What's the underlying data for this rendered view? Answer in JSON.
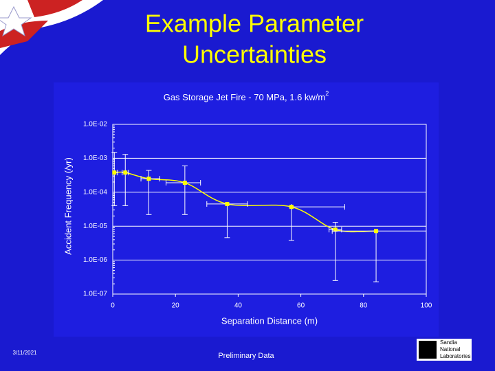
{
  "slide": {
    "title_lines": [
      "Example Parameter",
      "Uncertainties"
    ],
    "date": "3/11/2021",
    "footer": "Preliminary Data",
    "logo_lines": [
      "Sandia",
      "National",
      "Laboratories"
    ]
  },
  "chart_data": {
    "type": "line",
    "title": "Gas Storage Jet Fire - 70 MPa, 1.6 kw/m",
    "title_superscript": "2",
    "xlabel": "Separation Distance (m)",
    "ylabel": "Accident Frequency (/yr)",
    "x": [
      0.5,
      4,
      11.5,
      23,
      36.5,
      57,
      71,
      84
    ],
    "values": [
      0.00038,
      0.00038,
      0.00025,
      0.00019,
      4.5e-05,
      3.7e-05,
      7.9e-06,
      7.2e-06
    ],
    "y_low": [
      4e-05,
      4e-05,
      2.2e-05,
      2.2e-05,
      4.6e-06,
      3.8e-06,
      2.5e-07,
      2.3e-07
    ],
    "y_high": [
      0.0015,
      0.0013,
      0.00044,
      0.0006,
      4.5e-05,
      3.7e-05,
      1.3e-05,
      7.2e-06
    ],
    "x_low": [
      0,
      3,
      9,
      17,
      30,
      57,
      69,
      70
    ],
    "x_high": [
      1.5,
      5,
      15,
      28,
      43,
      74,
      73,
      100
    ],
    "color": "#ffff00",
    "xlim": [
      0,
      100
    ],
    "xticks": [
      0,
      20,
      40,
      60,
      80,
      100
    ],
    "ylim": [
      1e-07,
      0.01
    ],
    "ylog": true,
    "yticks": [
      {
        "value": 1e-07,
        "label": "1.0E-07"
      },
      {
        "value": 1e-06,
        "label": "1.0E-06"
      },
      {
        "value": 1e-05,
        "label": "1.0E-05"
      },
      {
        "value": 0.0001,
        "label": "1.0E-04"
      },
      {
        "value": 0.001,
        "label": "1.0E-03"
      },
      {
        "value": 0.01,
        "label": "1.0E-02"
      }
    ],
    "grid": true
  }
}
